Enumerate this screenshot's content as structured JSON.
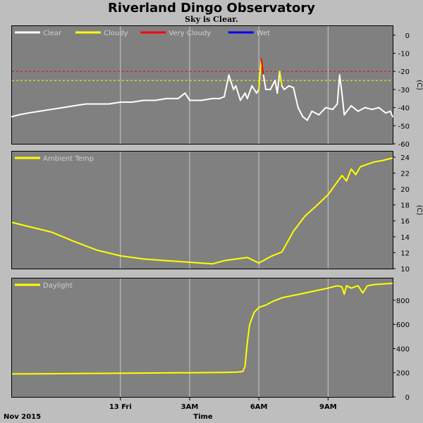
{
  "header": {
    "title": "Riverland Dingo Observatory",
    "subtitle": "Sky is Clear."
  },
  "footer": {
    "date_label": "Nov 2015",
    "time_label": "Time"
  },
  "x_axis": {
    "range_hours": [
      -4.7,
      11.8
    ],
    "ticks": [
      {
        "x": 0,
        "label": "13 Fri"
      },
      {
        "x": 3,
        "label": "3AM"
      },
      {
        "x": 6,
        "label": "6AM"
      },
      {
        "x": 9,
        "label": "9AM"
      }
    ]
  },
  "colors": {
    "plot_bg": "#808080",
    "page_bg": "#bebebe",
    "grid": "#c8c8c8",
    "clear": "#ffffff",
    "cloudy": "#ffff00",
    "very_cloudy": "#ff0000",
    "wet": "#0000ff",
    "legend_text": "#d0d0d0"
  },
  "chart_data": [
    {
      "type": "line",
      "id": "sky",
      "legend": [
        {
          "name": "Clear",
          "color": "#ffffff"
        },
        {
          "name": "Cloudy",
          "color": "#ffff00"
        },
        {
          "name": "Very Cloudy",
          "color": "#ff0000"
        },
        {
          "name": "Wet",
          "color": "#0000ff"
        }
      ],
      "ylabel": "(C)",
      "ylim": [
        -60,
        5
      ],
      "yticks": [
        0,
        -10,
        -20,
        -30,
        -40,
        -50,
        -60
      ],
      "thresholds": [
        {
          "y": -20,
          "color": "#ff0000"
        },
        {
          "y": -25,
          "color": "#ffff00"
        }
      ],
      "series": [
        {
          "x": [
            -4.7,
            -4.4,
            -4.0,
            -3.5,
            -3.0,
            -2.5,
            -2.0,
            -1.5,
            -1.0,
            -0.5,
            0.0,
            0.5,
            1.0,
            1.5,
            2.0,
            2.5,
            2.8,
            3.0,
            3.5,
            4.0,
            4.3,
            4.5,
            4.7,
            4.9,
            5.0,
            5.2,
            5.4,
            5.5,
            5.7,
            5.9,
            6.0,
            6.1,
            6.2,
            6.3,
            6.5,
            6.7,
            6.8,
            6.9,
            7.0,
            7.1,
            7.3,
            7.5,
            7.7,
            7.9,
            8.1,
            8.3,
            8.6,
            8.9,
            9.2,
            9.4,
            9.5,
            9.6,
            9.7,
            10.0,
            10.3,
            10.6,
            10.9,
            11.2,
            11.5,
            11.7,
            11.8
          ],
          "y": [
            -45,
            -44,
            -43,
            -42,
            -41,
            -40,
            -39,
            -38,
            -38,
            -38,
            -37,
            -37,
            -36,
            -36,
            -35,
            -35,
            -32,
            -36,
            -36,
            -35,
            -35,
            -34,
            -22,
            -30,
            -28,
            -36,
            -32,
            -35,
            -28,
            -32,
            -30,
            -13,
            -22,
            -30,
            -30,
            -25,
            -32,
            -20,
            -28,
            -30,
            -28,
            -29,
            -40,
            -45,
            -47,
            -42,
            -44,
            -40,
            -41,
            -38,
            -22,
            -32,
            -44,
            -39,
            -42,
            -40,
            -41,
            -40,
            -43,
            -42,
            -45
          ]
        }
      ]
    },
    {
      "type": "line",
      "id": "ambient",
      "legend": [
        {
          "name": "Ambient Temp",
          "color": "#ffff00"
        }
      ],
      "ylabel": "(C)",
      "ylim": [
        10,
        24.7
      ],
      "yticks": [
        10,
        12,
        14,
        16,
        18,
        20,
        22,
        24
      ],
      "series": [
        {
          "x": [
            -4.7,
            -4.0,
            -3.0,
            -2.0,
            -1.0,
            0.0,
            1.0,
            2.0,
            3.0,
            4.0,
            4.5,
            5.0,
            5.5,
            6.0,
            6.5,
            7.0,
            7.5,
            8.0,
            8.5,
            9.0,
            9.3,
            9.6,
            9.8,
            10.0,
            10.2,
            10.4,
            10.6,
            11.0,
            11.4,
            11.8
          ],
          "y": [
            15.8,
            15.3,
            14.6,
            13.4,
            12.3,
            11.6,
            11.2,
            11.0,
            10.8,
            10.6,
            11.0,
            11.2,
            11.4,
            10.7,
            11.5,
            12.1,
            14.7,
            16.6,
            17.9,
            19.3,
            20.5,
            21.7,
            21.0,
            22.5,
            21.8,
            22.8,
            23.0,
            23.4,
            23.6,
            23.9
          ]
        }
      ]
    },
    {
      "type": "line",
      "id": "daylight",
      "legend": [
        {
          "name": "Daylight",
          "color": "#ffff00"
        }
      ],
      "ylabel": "",
      "ylim": [
        0,
        980
      ],
      "yticks": [
        0,
        200,
        400,
        600,
        800
      ],
      "series": [
        {
          "x": [
            -4.7,
            -3.0,
            -1.0,
            1.0,
            3.0,
            4.5,
            5.0,
            5.3,
            5.4,
            5.5,
            5.6,
            5.8,
            6.0,
            6.3,
            6.6,
            7.0,
            7.5,
            8.0,
            8.5,
            9.0,
            9.4,
            9.6,
            9.7,
            9.8,
            10.0,
            10.3,
            10.5,
            10.7,
            11.0,
            11.4,
            11.8
          ],
          "y": [
            190,
            192,
            195,
            198,
            200,
            203,
            205,
            210,
            250,
            450,
            600,
            700,
            740,
            760,
            790,
            820,
            840,
            860,
            880,
            900,
            920,
            910,
            850,
            920,
            900,
            920,
            860,
            920,
            930,
            935,
            940
          ]
        }
      ]
    }
  ]
}
